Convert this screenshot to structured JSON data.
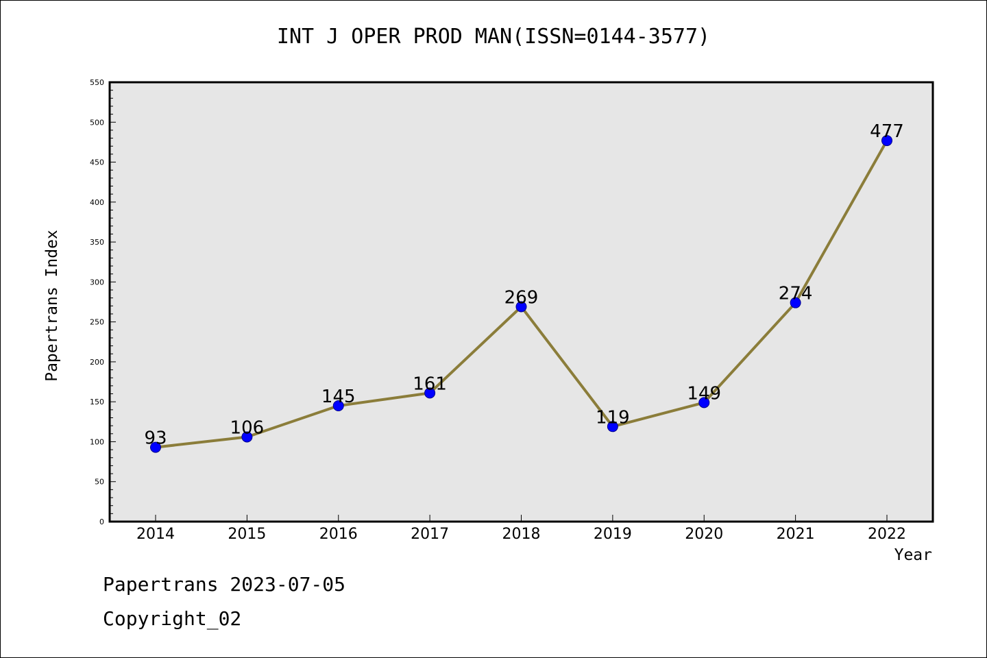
{
  "chart_data": {
    "type": "line",
    "title": "INT J OPER PROD MAN(ISSN=0144-3577)",
    "xlabel": "Year",
    "ylabel": "Papertrans Index",
    "categories": [
      "2014",
      "2015",
      "2016",
      "2017",
      "2018",
      "2019",
      "2020",
      "2021",
      "2022"
    ],
    "series": [
      {
        "values": [
          93,
          106,
          145,
          161,
          269,
          119,
          149,
          274,
          477
        ]
      }
    ],
    "ylim": [
      0,
      550
    ],
    "y_ticks": [
      0,
      50,
      100,
      150,
      200,
      250,
      300,
      350,
      400,
      450,
      500,
      550
    ],
    "grid": false,
    "line_color": "#8b7d3a",
    "marker_color": "#0000ff",
    "plot_background": "#e6e6e6"
  },
  "footer": {
    "line1": "Papertrans 2023-07-05",
    "line2": "Copyright_02"
  }
}
